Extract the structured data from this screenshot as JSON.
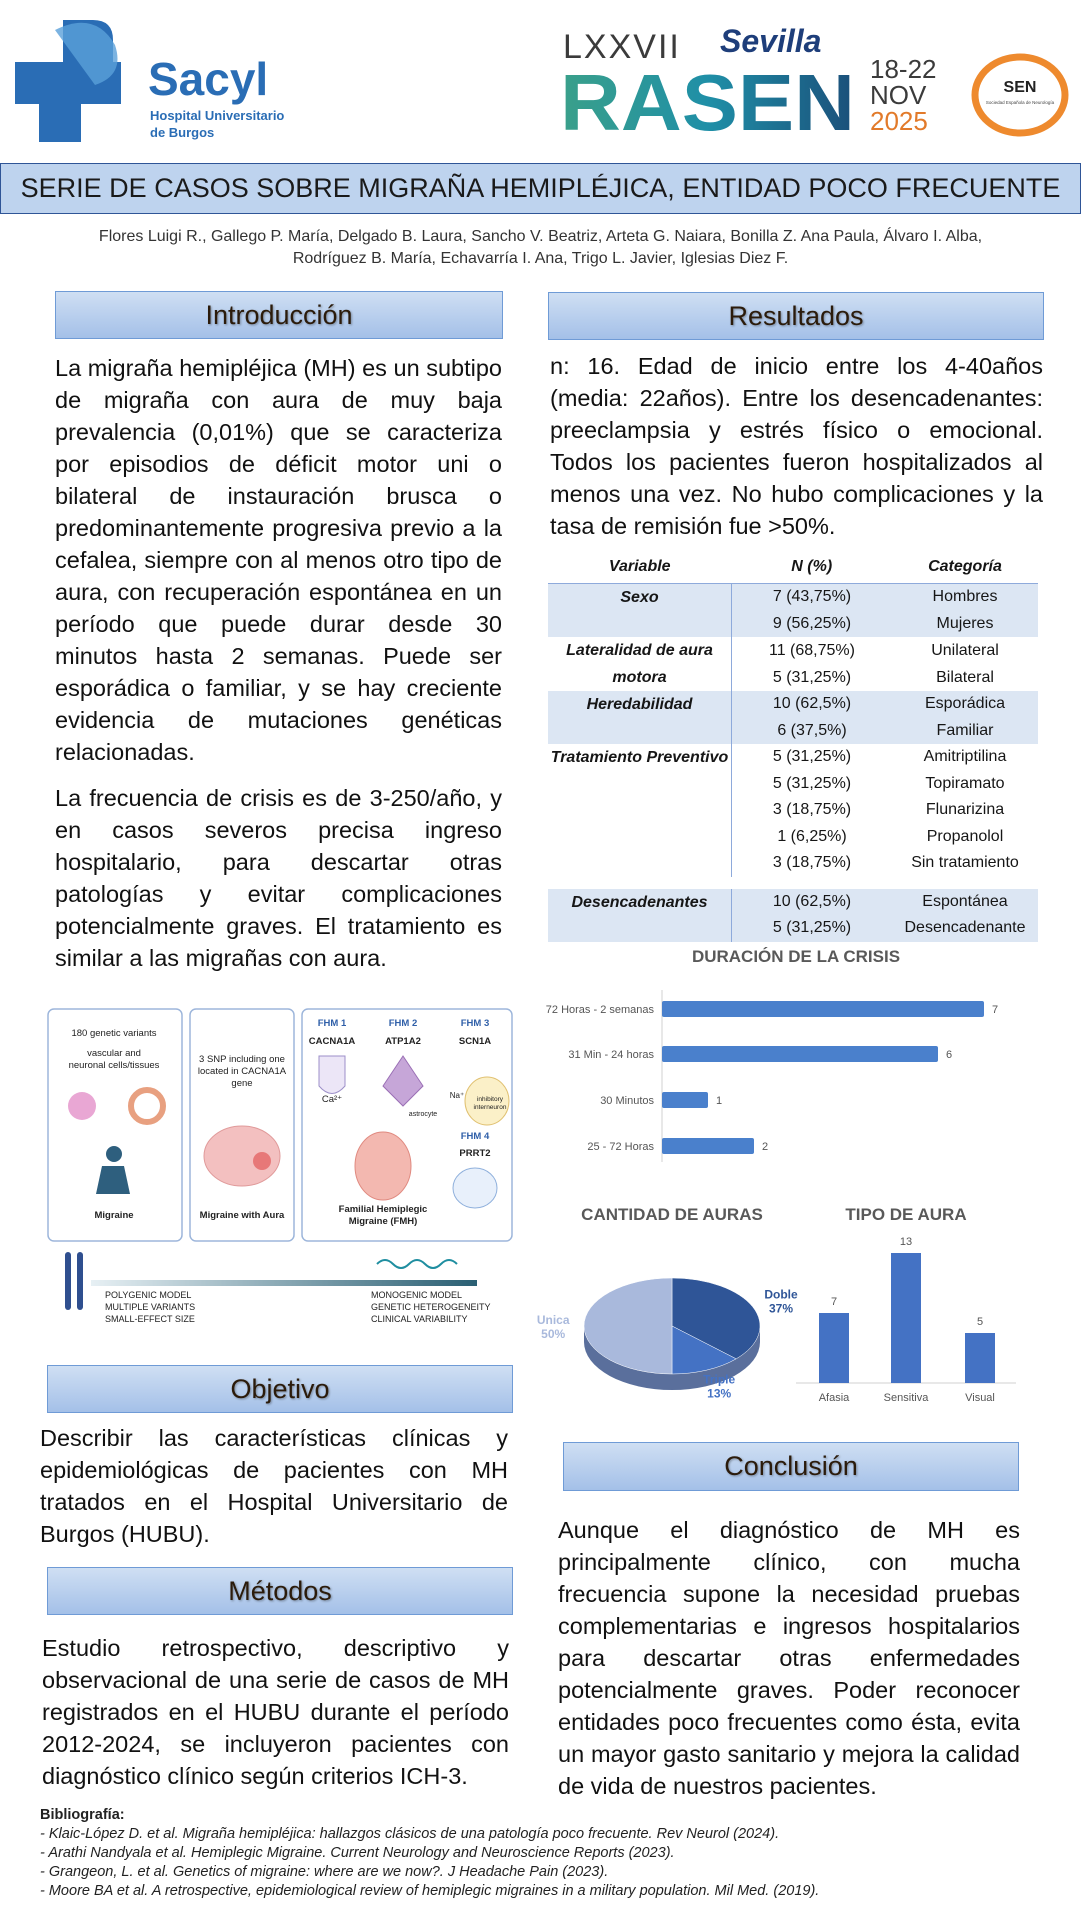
{
  "header": {
    "sacyl": "Sacyl",
    "hospital_line1": "Hospital Universitario",
    "hospital_line2": "de Burgos",
    "edition": "LXXVII",
    "city": "Sevilla",
    "congress": "RASEN",
    "dates": "18-22",
    "month": "NOV",
    "year": "2025",
    "society": "SEN",
    "society_name": "Sociedad Española de Neurología"
  },
  "title": "SERIE DE CASOS SOBRE MIGRAÑA HEMIPLÉJICA, ENTIDAD POCO FRECUENTE",
  "authors": "Flores Luigi R., Gallego P. María, Delgado B. Laura, Sancho V. Beatriz, Arteta G. Naiara, Bonilla Z. Ana Paula, Álvaro I. Alba, Rodríguez B. María, Echavarría I. Ana, Trigo L. Javier, Iglesias Diez F.",
  "introduction": {
    "heading": "Introducción",
    "paragraphs": [
      "La migraña hemipléjica (MH) es un subtipo de migraña con aura de muy baja prevalencia (0,01%) que se caracteriza por episodios de déficit motor uni o bilateral de instauración brusca o predominantemente progresiva previo a la cefalea, siempre con al menos otro tipo de aura, con recuperación espontánea en un período que puede durar desde 30 minutos hasta 2 semanas. Puede ser esporádica o familiar, y se hay creciente evidencia de mutaciones genéticas relacionadas.",
      "La frecuencia de crisis es de 3-250/año, y en casos severos precisa ingreso hospitalario, para descartar otras patologías y evitar complicaciones potencialmente graves. El tratamiento es similar a las migrañas con aura."
    ]
  },
  "figure": {
    "panel1_line1": "180 genetic variants",
    "panel1_line2": "vascular and",
    "panel1_line3": "neuronal cells/tissues",
    "panel1_caption": "Migraine",
    "panel2_line1": "3 SNP including one",
    "panel2_line2": "located in CACNA1A",
    "panel2_line3": "gene",
    "panel2_caption": "Migraine with Aura",
    "fhm1": "FHM 1",
    "gene1": "CACNA1A",
    "fhm2": "FHM 2",
    "gene2": "ATP1A2",
    "fhm3": "FHM 3",
    "gene3": "SCN1A",
    "fhm4": "FHM 4",
    "gene4": "PRRT2",
    "ion_ca": "Ca²⁺",
    "astrocyte": "astrocyte",
    "ion_na": "Na⁺",
    "interneuron_line1": "inhibitory",
    "interneuron_line2": "interneuron",
    "panel3_caption1": "Familial Hemiplegic",
    "panel3_caption2": "Migraine (FMH)",
    "poly1": "POLYGENIC MODEL",
    "poly2": "MULTIPLE VARIANTS",
    "poly3": "SMALL-EFFECT SIZE",
    "mono1": "MONOGENIC MODEL",
    "mono2": "GENETIC HETEROGENEITY",
    "mono3": "CLINICAL VARIABILITY"
  },
  "objective": {
    "heading": "Objetivo",
    "text": "Describir las características clínicas y epidemiológicas de pacientes con MH tratados en el Hospital Universitario de Burgos (HUBU)."
  },
  "methods": {
    "heading": "Métodos",
    "text": "Estudio retrospectivo, descriptivo y observacional de una serie de casos de MH registrados en el HUBU durante el período 2012-2024, se incluyeron pacientes con diagnóstico clínico según criterios ICH-3."
  },
  "results": {
    "heading": "Resultados",
    "text": "n: 16. Edad de inicio entre los 4-40años (media: 22años). Entre los desencadenantes: preeclampsia y estrés físico o emocional. Todos los pacientes fueron hospitalizados al menos una vez. No hubo complicaciones y la tasa de remisión fue >50%."
  },
  "table": {
    "headers": [
      "Variable",
      "N (%)",
      "Categoría"
    ],
    "groups": [
      {
        "variable": "Sexo",
        "rows": [
          [
            "7 (43,75%)",
            "Hombres"
          ],
          [
            "9 (56,25%)",
            "Mujeres"
          ]
        ]
      },
      {
        "variable": "Lateralidad de aura motora",
        "rows": [
          [
            "11 (68,75%)",
            "Unilateral"
          ],
          [
            "5 (31,25%)",
            "Bilateral"
          ]
        ]
      },
      {
        "variable": "Heredabilidad",
        "rows": [
          [
            "10 (62,5%)",
            "Esporádica"
          ],
          [
            "6 (37,5%)",
            "Familiar"
          ]
        ]
      },
      {
        "variable": "Tratamiento Preventivo",
        "rows": [
          [
            "5 (31,25%)",
            "Amitriptilina"
          ],
          [
            "5 (31,25%)",
            "Topiramato"
          ],
          [
            "3 (18,75%)",
            "Flunarizina"
          ],
          [
            "1 (6,25%)",
            "Propanolol"
          ],
          [
            "3 (18,75%)",
            "Sin tratamiento"
          ]
        ]
      },
      {
        "variable": "Desencadenantes",
        "rows": [
          [
            "10 (62,5%)",
            "Espontánea"
          ],
          [
            "5 (31,25%)",
            "Desencadenante"
          ]
        ]
      }
    ]
  },
  "chart_data": [
    {
      "type": "hbar",
      "title": "DURACIÓN DE LA CRISIS",
      "categories": [
        "72 Horas - 2 semanas",
        "31 Min - 24 horas",
        "30 Minutos",
        "25 - 72 Horas"
      ],
      "values": [
        7,
        6,
        1,
        2
      ],
      "color": "#4a80cc"
    },
    {
      "type": "pie",
      "title": "CANTIDAD DE AURAS",
      "categories": [
        "Unica",
        "Doble",
        "Triple"
      ],
      "values": [
        50,
        37,
        13
      ],
      "value_labels": [
        "50%",
        "37%",
        "13%"
      ],
      "colors": [
        "#a9b9dc",
        "#2f5597",
        "#4472c4"
      ]
    },
    {
      "type": "bar",
      "title": "TIPO DE AURA",
      "categories": [
        "Afasia",
        "Sensitiva",
        "Visual"
      ],
      "values": [
        7,
        13,
        5
      ],
      "color": "#4472c4"
    }
  ],
  "conclusion": {
    "heading": "Conclusión",
    "text": "Aunque el diagnóstico de MH es principalmente clínico, con mucha frecuencia supone la necesidad pruebas complementarias e ingresos hospitalarios para descartar otras enfermedades potencialmente graves. Poder reconocer entidades poco frecuentes como ésta, evita un mayor gasto sanitario y mejora la calidad de vida de nuestros pacientes."
  },
  "bibliography": {
    "heading": "Bibliografía:",
    "items": [
      "- Klaic-López D. et al. Migraña hemipléjica: hallazgos clásicos de una patología poco frecuente. Rev Neurol (2024).",
      "- Arathi Nandyala et al. Hemiplegic Migraine. Current Neurology and Neuroscience Reports (2023).",
      "- Grangeon, L. et al. Genetics of migraine: where are we now?. J Headache Pain (2023).",
      "- Moore BA et al. A retrospective, epidemiological review of hemiplegic migraines in a military population. Mil Med. (2019)."
    ]
  }
}
